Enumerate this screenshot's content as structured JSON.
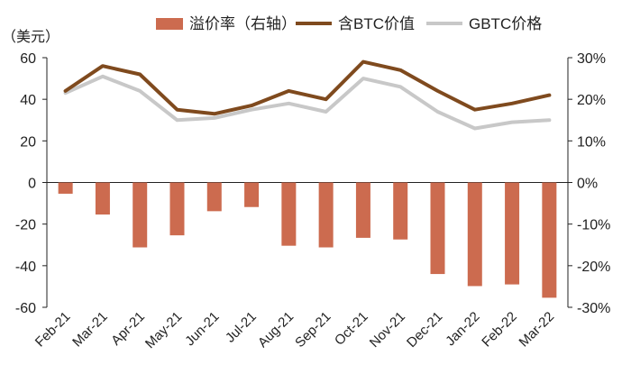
{
  "chart_data": {
    "type": "bar+line",
    "unit_left": "（美元）",
    "categories": [
      "Feb-21",
      "Mar-21",
      "Apr-21",
      "May-21",
      "Jun-21",
      "Jul-21",
      "Aug-21",
      "Sep-21",
      "Oct-21",
      "Nov-21",
      "Dec-21",
      "Jan-22",
      "Feb-22",
      "Mar-22"
    ],
    "y_left": {
      "min": -60,
      "max": 60,
      "ticks": [
        -60,
        -40,
        -20,
        0,
        20,
        40,
        60
      ],
      "tick_labels": [
        "-60",
        "-40",
        "-20",
        "0",
        "20",
        "40",
        "60"
      ]
    },
    "y_right": {
      "min": -30,
      "max": 30,
      "ticks": [
        -30,
        -20,
        -10,
        0,
        10,
        20,
        30
      ],
      "tick_labels": [
        "-30%",
        "-20%",
        "-10%",
        "0%",
        "10%",
        "20%",
        "30%"
      ]
    },
    "grid": false,
    "legend_position": "top",
    "series": [
      {
        "name": "溢价率（右轴）",
        "type": "bar",
        "axis": "right",
        "color": "#cc6b4f",
        "values": [
          -2.7,
          -7.7,
          -15.6,
          -12.7,
          -6.9,
          -5.9,
          -15.2,
          -15.6,
          -13.3,
          -13.7,
          -22.0,
          -24.9,
          -24.5,
          -27.7
        ]
      },
      {
        "name": "含BTC价值",
        "type": "line",
        "axis": "left",
        "color": "#7f4a1e",
        "values": [
          44,
          56,
          52,
          35,
          33,
          37,
          44,
          40,
          58,
          54,
          44,
          35,
          38,
          42
        ]
      },
      {
        "name": "GBTC价格",
        "type": "line",
        "axis": "left",
        "color": "#c8c8c8",
        "values": [
          43,
          51,
          44,
          30,
          31,
          35,
          38,
          34,
          50,
          46,
          34,
          26,
          29,
          30
        ]
      }
    ]
  }
}
